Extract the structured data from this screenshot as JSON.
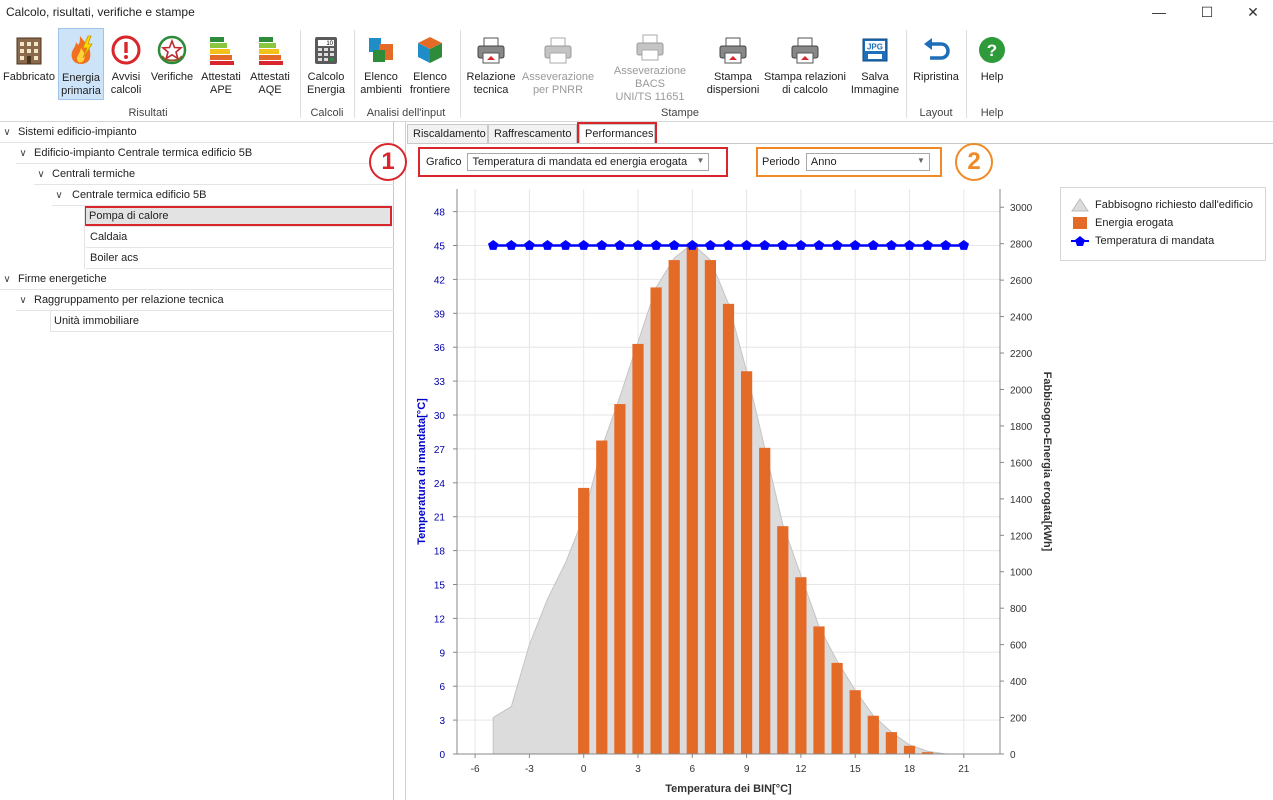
{
  "window": {
    "title": "Calcolo, risultati, verifiche e stampe",
    "minimize": "—",
    "maximize": "☐",
    "close": "✕"
  },
  "ribbon": {
    "buttons": [
      {
        "label": "Fabbricato",
        "icon": "building-icon"
      },
      {
        "label": "Energia\nprimaria",
        "icon": "fire-bolt-icon"
      },
      {
        "label": "Avvisi\ncalcoli",
        "icon": "alert-icon"
      },
      {
        "label": "Verifiche",
        "icon": "emblem-icon"
      },
      {
        "label": "Attestati\nAPE",
        "icon": "energy-class-icon"
      },
      {
        "label": "Attestati\nAQE",
        "icon": "energy-class-icon"
      },
      {
        "label": "Calcolo\nEnergia",
        "icon": "calculator-icon"
      },
      {
        "label": "Elenco\nambienti",
        "icon": "rooms-icon"
      },
      {
        "label": "Elenco\nfrontiere",
        "icon": "cube-icon"
      },
      {
        "label": "Relazione\ntecnica",
        "icon": "printer-icon"
      },
      {
        "label": "Asseverazione\nper PNRR",
        "icon": "printer-icon"
      },
      {
        "label": "Asseverazione BACS\nUNI/TS 11651",
        "icon": "printer-icon"
      },
      {
        "label": "Stampa\ndispersioni",
        "icon": "printer-icon"
      },
      {
        "label": "Stampa relazioni\ndi calcolo",
        "icon": "printer-icon"
      },
      {
        "label": "Salva\nImmagine",
        "icon": "jpg-icon"
      },
      {
        "label": "Ripristina",
        "icon": "undo-icon"
      },
      {
        "label": "Help",
        "icon": "help-icon"
      }
    ],
    "groups": [
      "Risultati",
      "Calcoli",
      "Analisi dell'input",
      "Stampe",
      "Layout",
      "Help"
    ],
    "jpg_text": "JPG",
    "calc_text": "10"
  },
  "tree": {
    "items": [
      {
        "label": "Sistemi edificio-impianto",
        "chev": "∨"
      },
      {
        "label": "Edificio-impianto Centrale termica edificio 5B",
        "chev": "∨"
      },
      {
        "label": "Centrali termiche",
        "chev": "∨"
      },
      {
        "label": "Centrale termica edificio 5B",
        "chev": "∨"
      },
      {
        "label": "Pompa di calore",
        "chev": ""
      },
      {
        "label": "Caldaia",
        "chev": ""
      },
      {
        "label": "Boiler acs",
        "chev": ""
      },
      {
        "label": "Firme energetiche",
        "chev": "∨"
      },
      {
        "label": "Raggruppamento per relazione tecnica",
        "chev": "∨"
      },
      {
        "label": "Unità immobiliare",
        "chev": ""
      }
    ]
  },
  "tabs": [
    "Riscaldamento",
    "Raffrescamento",
    "Performances"
  ],
  "controls": {
    "grafico_label": "Grafico",
    "grafico_value": "Temperatura di mandata ed energia erogata",
    "periodo_label": "Periodo",
    "periodo_value": "Anno",
    "callout1": "1",
    "callout2": "2",
    "arrow": "▼"
  },
  "colors": {
    "bar": "#e46b27",
    "temperature": "#0000ff",
    "area": "#dcdcdc",
    "callout1": "#d9262c",
    "callout2": "#f08a26"
  },
  "chart_data": {
    "type": "bar",
    "xlabel": "Temperatura dei BIN[°C]",
    "ylabel_left": "Temperatura di mandata[°C]",
    "ylabel_right": "Fabbisogno-Energia erogata[kWh]",
    "xlim": [
      -7,
      23
    ],
    "ylim_left": [
      0,
      50
    ],
    "ylim_right": [
      0,
      3100
    ],
    "x_ticks": [
      -6,
      -3,
      0,
      3,
      6,
      9,
      12,
      15,
      18,
      21
    ],
    "y_left_ticks": [
      0,
      3,
      6,
      9,
      12,
      15,
      18,
      21,
      24,
      27,
      30,
      33,
      36,
      39,
      42,
      45,
      48
    ],
    "y_right_ticks": [
      0,
      200,
      400,
      600,
      800,
      1000,
      1200,
      1400,
      1600,
      1800,
      2000,
      2200,
      2400,
      2600,
      2800,
      3000
    ],
    "legend": [
      "Fabbisogno richiesto dall'edificio",
      "Energia erogata",
      "Temperatura di mandata"
    ],
    "series": [
      {
        "name": "Energia erogata",
        "type": "bar",
        "axis": "right",
        "x": [
          0,
          1,
          2,
          3,
          4,
          5,
          6,
          7,
          8,
          9,
          10,
          11,
          12,
          13,
          14,
          15,
          16,
          17,
          18,
          19
        ],
        "values": [
          1460,
          1720,
          1920,
          2250,
          2560,
          2710,
          2800,
          2710,
          2470,
          2100,
          1680,
          1250,
          970,
          700,
          500,
          350,
          210,
          120,
          45,
          10
        ]
      },
      {
        "name": "Fabbisogno richiesto dall'edificio",
        "type": "area",
        "axis": "right",
        "x": [
          -5,
          -4,
          -3,
          -2,
          -1,
          0,
          1,
          2,
          3,
          4,
          5,
          6,
          7,
          8,
          9,
          10,
          11,
          12,
          13,
          14,
          15,
          16,
          17,
          18,
          19,
          20
        ],
        "values": [
          200,
          260,
          600,
          850,
          1050,
          1300,
          1680,
          1960,
          2260,
          2560,
          2720,
          2800,
          2710,
          2470,
          2100,
          1680,
          1260,
          980,
          700,
          510,
          350,
          210,
          120,
          50,
          15,
          0
        ]
      },
      {
        "name": "Temperatura di mandata",
        "type": "line",
        "axis": "left",
        "x": [
          -5,
          -4,
          -3,
          -2,
          -1,
          0,
          1,
          2,
          3,
          4,
          5,
          6,
          7,
          8,
          9,
          10,
          11,
          12,
          13,
          14,
          15,
          16,
          17,
          18,
          19,
          20,
          21
        ],
        "values": [
          45,
          45,
          45,
          45,
          45,
          45,
          45,
          45,
          45,
          45,
          45,
          45,
          45,
          45,
          45,
          45,
          45,
          45,
          45,
          45,
          45,
          45,
          45,
          45,
          45,
          45,
          45
        ]
      }
    ]
  }
}
